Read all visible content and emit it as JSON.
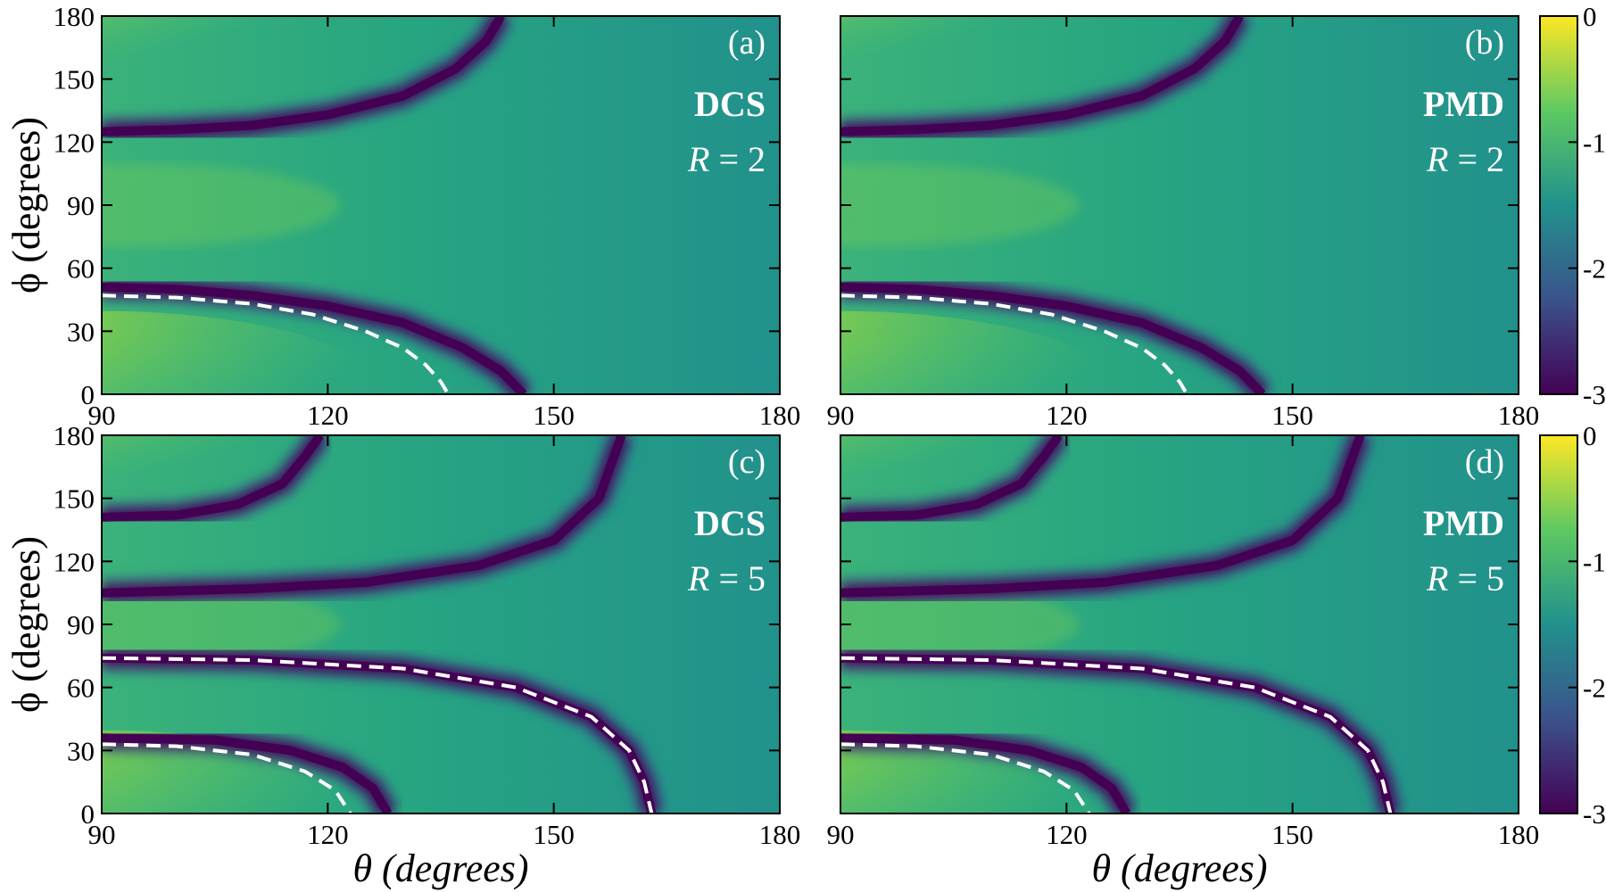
{
  "chart_data": {
    "type": "heatmap",
    "xlabel": "θ (degrees)",
    "ylabel": "ϕ (degrees)",
    "xlim": [
      90,
      180
    ],
    "ylim": [
      0,
      180
    ],
    "xticks": [
      "90",
      "120",
      "150",
      "180"
    ],
    "yticks": [
      "0",
      "30",
      "60",
      "90",
      "120",
      "150",
      "180"
    ],
    "colorscale": "viridis",
    "colorbar": {
      "range": [
        -3,
        0
      ],
      "ticks": [
        "0",
        "-1",
        "-2",
        "-3"
      ]
    },
    "colors": {
      "dashed_curve": "#ffffff",
      "panel_text": "#ffffff"
    },
    "panels": [
      {
        "id": "(a)",
        "method": "DCS",
        "R": "2",
        "minima_curves": [
          [
            [
              90,
              125
            ],
            [
              100,
              126
            ],
            [
              110,
              128
            ],
            [
              120,
              133
            ],
            [
              130,
              142
            ],
            [
              137,
              155
            ],
            [
              141,
              168
            ],
            [
              143,
              180
            ]
          ],
          [
            [
              90,
              51
            ],
            [
              100,
              50
            ],
            [
              110,
              47
            ],
            [
              120,
              42
            ],
            [
              130,
              34
            ],
            [
              138,
              22
            ],
            [
              143,
              11
            ],
            [
              146,
              0
            ]
          ]
        ],
        "dashed_curve": [
          [
            90,
            47
          ],
          [
            100,
            46
          ],
          [
            110,
            43
          ],
          [
            118,
            38
          ],
          [
            125,
            30
          ],
          [
            130,
            22
          ],
          [
            133,
            14
          ],
          [
            135,
            6
          ],
          [
            136,
            0
          ]
        ]
      },
      {
        "id": "(b)",
        "method": "PMD",
        "R": "2",
        "minima_curves": [
          [
            [
              90,
              125
            ],
            [
              100,
              126
            ],
            [
              110,
              128
            ],
            [
              120,
              133
            ],
            [
              130,
              142
            ],
            [
              137,
              155
            ],
            [
              141,
              168
            ],
            [
              143,
              180
            ]
          ],
          [
            [
              90,
              51
            ],
            [
              100,
              50
            ],
            [
              110,
              47
            ],
            [
              120,
              42
            ],
            [
              130,
              34
            ],
            [
              138,
              22
            ],
            [
              143,
              11
            ],
            [
              146,
              0
            ]
          ]
        ],
        "dashed_curve": [
          [
            90,
            47
          ],
          [
            100,
            46
          ],
          [
            110,
            43
          ],
          [
            118,
            38
          ],
          [
            125,
            30
          ],
          [
            130,
            22
          ],
          [
            133,
            14
          ],
          [
            135,
            6
          ],
          [
            136,
            0
          ]
        ]
      },
      {
        "id": "(c)",
        "method": "DCS",
        "R": "5",
        "minima_curves": [
          [
            [
              90,
              141
            ],
            [
              100,
              142
            ],
            [
              108,
              147
            ],
            [
              114,
              157
            ],
            [
              117,
              170
            ],
            [
              119,
              180
            ]
          ],
          [
            [
              90,
              105
            ],
            [
              110,
              107
            ],
            [
              125,
              110
            ],
            [
              140,
              118
            ],
            [
              150,
              130
            ],
            [
              156,
              150
            ],
            [
              158,
              170
            ],
            [
              159,
              180
            ]
          ],
          [
            [
              90,
              74
            ],
            [
              110,
              73
            ],
            [
              130,
              69
            ],
            [
              145,
              60
            ],
            [
              155,
              46
            ],
            [
              160,
              30
            ],
            [
              162,
              15
            ],
            [
              163,
              0
            ]
          ],
          [
            [
              90,
              36
            ],
            [
              105,
              35
            ],
            [
              115,
              30
            ],
            [
              122,
              22
            ],
            [
              126,
              12
            ],
            [
              128,
              0
            ]
          ]
        ],
        "dashed_curves": [
          [
            [
              90,
              74
            ],
            [
              110,
              73
            ],
            [
              130,
              69
            ],
            [
              145,
              60
            ],
            [
              155,
              46
            ],
            [
              160,
              30
            ],
            [
              162,
              15
            ],
            [
              163,
              0
            ]
          ],
          [
            [
              90,
              33
            ],
            [
              100,
              32
            ],
            [
              110,
              28
            ],
            [
              117,
              20
            ],
            [
              121,
              11
            ],
            [
              123,
              0
            ]
          ]
        ]
      },
      {
        "id": "(d)",
        "method": "PMD",
        "R": "5",
        "minima_curves": [
          [
            [
              90,
              141
            ],
            [
              100,
              142
            ],
            [
              108,
              147
            ],
            [
              114,
              157
            ],
            [
              117,
              170
            ],
            [
              119,
              180
            ]
          ],
          [
            [
              90,
              105
            ],
            [
              110,
              107
            ],
            [
              125,
              110
            ],
            [
              140,
              118
            ],
            [
              150,
              130
            ],
            [
              156,
              150
            ],
            [
              158,
              170
            ],
            [
              159,
              180
            ]
          ],
          [
            [
              90,
              74
            ],
            [
              110,
              73
            ],
            [
              130,
              69
            ],
            [
              145,
              60
            ],
            [
              155,
              46
            ],
            [
              160,
              30
            ],
            [
              162,
              15
            ],
            [
              163,
              0
            ]
          ],
          [
            [
              90,
              36
            ],
            [
              105,
              35
            ],
            [
              115,
              30
            ],
            [
              122,
              22
            ],
            [
              126,
              12
            ],
            [
              128,
              0
            ]
          ]
        ],
        "dashed_curves": [
          [
            [
              90,
              74
            ],
            [
              110,
              73
            ],
            [
              130,
              69
            ],
            [
              145,
              60
            ],
            [
              155,
              46
            ],
            [
              160,
              30
            ],
            [
              162,
              15
            ],
            [
              163,
              0
            ]
          ],
          [
            [
              90,
              33
            ],
            [
              100,
              32
            ],
            [
              110,
              28
            ],
            [
              117,
              20
            ],
            [
              121,
              11
            ],
            [
              123,
              0
            ]
          ]
        ]
      }
    ]
  }
}
